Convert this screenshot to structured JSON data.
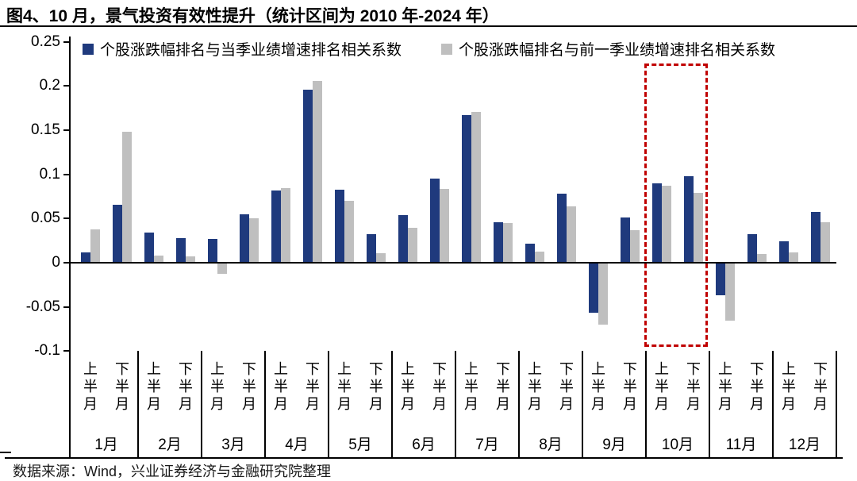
{
  "title": "图4、10 月，景气投资有效性提升（统计区间为 2010 年-2024 年）",
  "source": "数据来源：Wind，兴业证券经济与金融研究院整理",
  "colors": {
    "series1": "#1f3a7d",
    "series2": "#bfbfbf",
    "highlight": "#c00000",
    "axis": "#000000",
    "background": "#ffffff"
  },
  "legend": {
    "item1": "个股涨跌幅排名与当季业绩增速排名相关系数",
    "item2": "个股涨跌幅排名与前一季业绩增速排名相关系数"
  },
  "chart_data": {
    "type": "bar",
    "title": "图4、10 月，景气投资有效性提升（统计区间为 2010 年-2024 年）",
    "xlabel": "",
    "ylabel": "",
    "ylim": [
      -0.1,
      0.25
    ],
    "grid": false,
    "legend_position": "top",
    "y_ticks": [
      {
        "label": "0.25",
        "value": 0.25
      },
      {
        "label": "0.2",
        "value": 0.2
      },
      {
        "label": "0.15",
        "value": 0.15
      },
      {
        "label": "0.1",
        "value": 0.1
      },
      {
        "label": "0.05",
        "value": 0.05
      },
      {
        "label": "0",
        "value": 0
      },
      {
        "label": "-0.05",
        "value": -0.05
      },
      {
        "label": "-0.1",
        "value": -0.1
      }
    ],
    "month_labels": [
      "1月",
      "2月",
      "3月",
      "4月",
      "5月",
      "6月",
      "7月",
      "8月",
      "9月",
      "10月",
      "11月",
      "12月"
    ],
    "half_month_labels": [
      "上半月",
      "下半月"
    ],
    "categories": [
      "1月上半月",
      "1月下半月",
      "2月上半月",
      "2月下半月",
      "3月上半月",
      "3月下半月",
      "4月上半月",
      "4月下半月",
      "5月上半月",
      "5月下半月",
      "6月上半月",
      "6月下半月",
      "7月上半月",
      "7月下半月",
      "8月上半月",
      "8月下半月",
      "9月上半月",
      "9月下半月",
      "10月上半月",
      "10月下半月",
      "11月上半月",
      "11月下半月",
      "12月上半月",
      "12月下半月"
    ],
    "series": [
      {
        "name": "个股涨跌幅排名与当季业绩增速排名相关系数",
        "color": "#1f3a7d",
        "values": [
          0.011,
          0.065,
          0.033,
          0.027,
          0.026,
          0.054,
          0.081,
          0.195,
          0.082,
          0.031,
          0.053,
          0.094,
          0.166,
          0.045,
          0.021,
          0.077,
          -0.056,
          0.05,
          0.089,
          0.097,
          -0.036,
          0.031,
          0.023,
          0.057
        ]
      },
      {
        "name": "个股涨跌幅排名与前一季业绩增速排名相关系数",
        "color": "#bfbfbf",
        "values": [
          0.037,
          0.147,
          0.007,
          0.006,
          -0.012,
          0.049,
          0.084,
          0.205,
          0.069,
          0.01,
          0.039,
          0.083,
          0.17,
          0.044,
          0.012,
          0.063,
          -0.069,
          0.036,
          0.086,
          0.078,
          -0.065,
          0.009,
          0.011,
          0.045
        ]
      }
    ],
    "highlight": {
      "target_month": "10月",
      "style": "dashed-box",
      "color": "#c00000"
    }
  }
}
